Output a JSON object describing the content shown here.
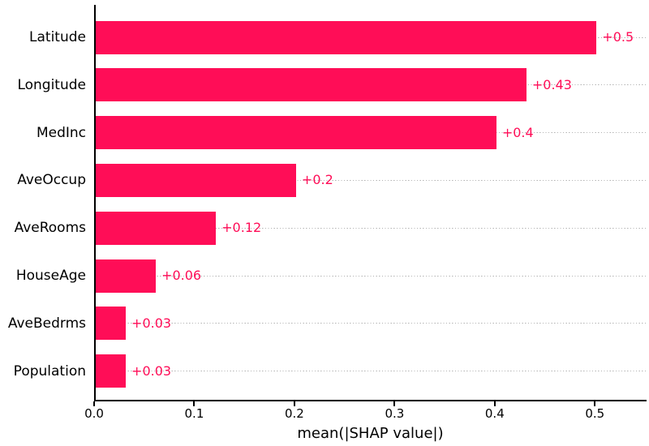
{
  "chart_data": {
    "type": "bar",
    "orientation": "horizontal",
    "title": "",
    "xlabel": "mean(|SHAP value|)",
    "ylabel": "",
    "categories": [
      "Latitude",
      "Longitude",
      "MedInc",
      "AveOccup",
      "AveRooms",
      "HouseAge",
      "AveBedrms",
      "Population"
    ],
    "values": [
      0.5,
      0.43,
      0.4,
      0.2,
      0.12,
      0.06,
      0.03,
      0.03
    ],
    "value_labels": [
      "+0.5",
      "+0.43",
      "+0.4",
      "+0.2",
      "+0.12",
      "+0.06",
      "+0.03",
      "+0.03"
    ],
    "xlim": [
      0,
      0.5516
    ],
    "xticks": [
      0.0,
      0.1,
      0.2,
      0.3,
      0.4,
      0.5
    ],
    "xtick_labels": [
      "0.0",
      "0.1",
      "0.2",
      "0.3",
      "0.4",
      "0.5"
    ],
    "grid": "horizontal dotted line per category row",
    "legend": false,
    "colors": {
      "bar": "#ff0d57",
      "value_label": "#ff0d57",
      "gridline": "#b3b3b3",
      "axis": "#000000",
      "text": "#000000",
      "background": "#ffffff"
    }
  }
}
